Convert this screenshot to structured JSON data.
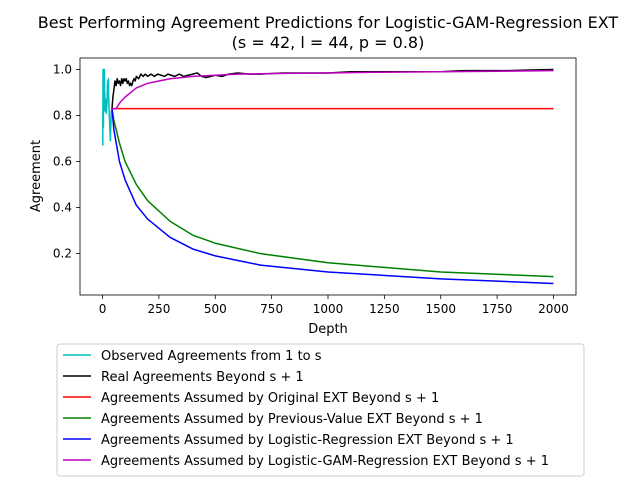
{
  "chart_data": {
    "type": "line",
    "title_line1": "Best Performing Agreement Predictions for Logistic-GAM-Regression EXT",
    "title_line2": "(s = 42, l = 44, p = 0.8)",
    "xlabel": "Depth",
    "ylabel": "Agreement",
    "xlim": [
      -100,
      2100
    ],
    "ylim": [
      0.02,
      1.05
    ],
    "xticks": [
      0,
      250,
      500,
      750,
      1000,
      1250,
      1500,
      1750,
      2000
    ],
    "yticks": [
      0.2,
      0.4,
      0.6,
      0.8,
      1.0
    ],
    "ytick_labels": [
      "0.2",
      "0.4",
      "0.6",
      "0.8",
      "1.0"
    ],
    "grid": false,
    "legend_position": "below",
    "series": [
      {
        "name": "Observed Agreements from 1 to s",
        "color": "#00bfbf",
        "x": [
          1,
          2,
          3,
          4,
          5,
          6,
          7,
          8,
          9,
          10,
          11,
          12,
          13,
          14,
          15,
          16,
          17,
          18,
          19,
          20,
          21,
          22,
          23,
          24,
          25,
          26,
          27,
          28,
          29,
          30,
          31,
          32,
          33,
          34,
          35,
          36,
          37,
          38,
          39,
          40,
          41,
          42
        ],
        "y": [
          0.67,
          1.0,
          1.0,
          0.75,
          1.0,
          0.83,
          0.86,
          1.0,
          0.89,
          0.9,
          0.82,
          0.83,
          0.85,
          0.86,
          0.87,
          0.81,
          0.82,
          0.83,
          0.84,
          0.85,
          0.9,
          0.95,
          0.91,
          0.88,
          0.92,
          0.96,
          0.88,
          0.86,
          0.83,
          0.8,
          0.78,
          0.75,
          0.73,
          0.71,
          0.69,
          0.74,
          0.76,
          0.79,
          0.82,
          0.8,
          0.81,
          0.83
        ]
      },
      {
        "name": "Real Agreements Beyond s + 1",
        "color": "#000000",
        "x": [
          42,
          46,
          50,
          55,
          60,
          65,
          70,
          75,
          80,
          85,
          90,
          95,
          100,
          105,
          110,
          115,
          120,
          125,
          130,
          135,
          140,
          145,
          150,
          160,
          170,
          180,
          190,
          200,
          215,
          230,
          245,
          260,
          275,
          290,
          305,
          320,
          340,
          360,
          380,
          400,
          420,
          440,
          460,
          480,
          500,
          530,
          560,
          600,
          650,
          700,
          800,
          900,
          1000,
          1100,
          1200,
          1300,
          1400,
          1500,
          1600,
          1700,
          1800,
          1900,
          2000
        ],
        "y": [
          0.83,
          0.88,
          0.91,
          0.95,
          0.93,
          0.96,
          0.94,
          0.95,
          0.93,
          0.96,
          0.94,
          0.96,
          0.95,
          0.96,
          0.94,
          0.95,
          0.93,
          0.94,
          0.93,
          0.95,
          0.96,
          0.95,
          0.97,
          0.96,
          0.98,
          0.97,
          0.98,
          0.97,
          0.98,
          0.97,
          0.98,
          0.975,
          0.97,
          0.98,
          0.975,
          0.97,
          0.98,
          0.97,
          0.975,
          0.98,
          0.985,
          0.97,
          0.965,
          0.97,
          0.975,
          0.97,
          0.98,
          0.985,
          0.98,
          0.98,
          0.985,
          0.985,
          0.985,
          0.99,
          0.99,
          0.99,
          0.99,
          0.99,
          0.995,
          0.995,
          0.995,
          0.998,
          1.0
        ]
      },
      {
        "name": "Agreements Assumed by Original EXT Beyond s + 1",
        "color": "#ff0000",
        "x": [
          42,
          2000
        ],
        "y": [
          0.83,
          0.83
        ]
      },
      {
        "name": "Agreements Assumed by Previous-Value EXT Beyond s + 1",
        "color": "#008000",
        "x": [
          42,
          50,
          75,
          100,
          150,
          200,
          300,
          400,
          500,
          700,
          1000,
          1500,
          2000
        ],
        "y": [
          0.83,
          0.78,
          0.68,
          0.6,
          0.5,
          0.43,
          0.34,
          0.28,
          0.245,
          0.2,
          0.16,
          0.12,
          0.1
        ]
      },
      {
        "name": "Agreements Assumed by Logistic-Regression EXT Beyond s + 1",
        "color": "#0000ff",
        "x": [
          42,
          50,
          75,
          100,
          150,
          200,
          300,
          400,
          500,
          700,
          1000,
          1500,
          2000
        ],
        "y": [
          0.83,
          0.74,
          0.6,
          0.52,
          0.41,
          0.35,
          0.27,
          0.22,
          0.19,
          0.15,
          0.12,
          0.09,
          0.07
        ]
      },
      {
        "name": "Agreements Assumed by Logistic-GAM-Regression EXT Beyond s + 1",
        "color": "#bf00bf",
        "x": [
          42,
          60,
          80,
          100,
          150,
          200,
          250,
          300,
          400,
          500,
          600,
          800,
          1000,
          1200,
          1500,
          2000
        ],
        "y": [
          0.83,
          0.83,
          0.86,
          0.88,
          0.92,
          0.94,
          0.95,
          0.96,
          0.97,
          0.975,
          0.98,
          0.983,
          0.985,
          0.988,
          0.99,
          0.995
        ]
      }
    ]
  }
}
